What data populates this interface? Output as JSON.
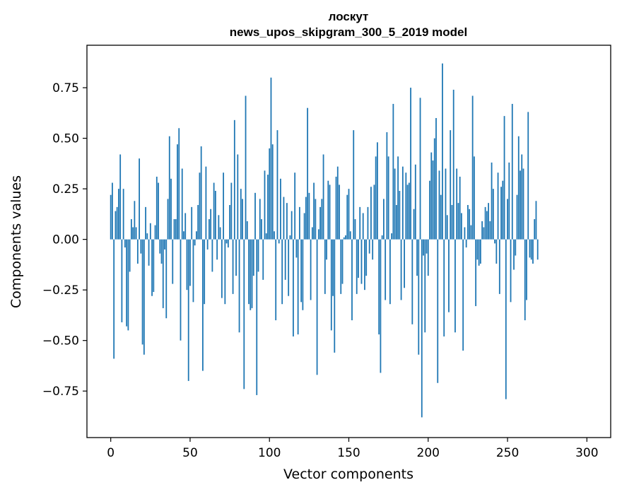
{
  "chart_data": {
    "type": "bar",
    "title_line1": "лоскут",
    "title_line2": "news_upos_skipgram_300_5_2019 model",
    "xlabel": "Vector components",
    "ylabel": "Components values",
    "xlim": [
      -15,
      315
    ],
    "ylim": [
      -0.98,
      0.96
    ],
    "x_ticks": [
      0,
      50,
      100,
      150,
      200,
      250,
      300
    ],
    "y_ticks": [
      0.75,
      0.5,
      0.25,
      0.0,
      -0.25,
      -0.5,
      -0.75
    ],
    "y_tick_labels": [
      "0.75",
      "0.50",
      "0.25",
      "0.00",
      "−0.25",
      "−0.50",
      "−0.75"
    ],
    "bar_color": "#1f77b4",
    "grid": false,
    "values": [
      0.22,
      0.28,
      -0.59,
      0.14,
      0.16,
      0.25,
      0.42,
      -0.41,
      0.25,
      -0.04,
      -0.43,
      -0.45,
      -0.16,
      0.1,
      0.06,
      0.19,
      0.06,
      -0.12,
      0.4,
      -0.07,
      -0.52,
      -0.57,
      0.16,
      0.03,
      -0.13,
      0.08,
      -0.28,
      -0.26,
      0.07,
      0.31,
      0.28,
      -0.07,
      -0.12,
      -0.34,
      -0.05,
      -0.39,
      0.2,
      0.51,
      0.3,
      -0.22,
      0.1,
      0.1,
      0.47,
      0.55,
      -0.5,
      0.35,
      0.04,
      0.13,
      -0.25,
      -0.7,
      -0.23,
      0.16,
      -0.31,
      -0.03,
      0.04,
      0.17,
      0.33,
      0.46,
      -0.65,
      -0.32,
      0.36,
      -0.05,
      0.1,
      0.15,
      -0.16,
      0.28,
      0.24,
      -0.1,
      0.12,
      0.06,
      -0.29,
      0.33,
      -0.32,
      -0.02,
      -0.04,
      0.17,
      0.28,
      -0.27,
      0.59,
      -0.18,
      0.42,
      -0.46,
      0.25,
      0.2,
      -0.74,
      0.71,
      0.09,
      -0.32,
      -0.35,
      -0.34,
      -0.18,
      0.23,
      -0.77,
      -0.16,
      0.2,
      0.1,
      -0.2,
      0.34,
      0.03,
      0.32,
      0.45,
      0.8,
      0.47,
      0.04,
      -0.4,
      0.54,
      -0.02,
      0.3,
      -0.32,
      0.21,
      -0.2,
      0.18,
      -0.28,
      0.02,
      0.14,
      -0.48,
      0.33,
      -0.09,
      -0.47,
      0.16,
      -0.31,
      -0.35,
      0.13,
      0.21,
      0.65,
      0.23,
      -0.3,
      0.06,
      0.28,
      0.2,
      -0.67,
      0.05,
      0.16,
      0.2,
      0.42,
      -0.27,
      -0.1,
      0.29,
      0.27,
      -0.45,
      -0.28,
      -0.56,
      0.31,
      0.36,
      0.27,
      -0.27,
      -0.22,
      0.01,
      0.02,
      0.22,
      0.25,
      0.04,
      -0.4,
      0.54,
      0.1,
      -0.27,
      -0.19,
      0.16,
      -0.22,
      0.13,
      -0.25,
      -0.18,
      0.16,
      -0.07,
      0.26,
      -0.1,
      0.27,
      0.41,
      0.48,
      -0.47,
      -0.66,
      0.02,
      0.2,
      -0.3,
      0.53,
      0.41,
      -0.32,
      0.03,
      0.67,
      0.35,
      0.17,
      0.41,
      0.24,
      -0.3,
      0.36,
      -0.24,
      0.33,
      0.27,
      0.28,
      0.75,
      -0.42,
      0.15,
      0.37,
      -0.18,
      -0.57,
      0.7,
      -0.88,
      -0.08,
      -0.46,
      -0.07,
      -0.18,
      0.29,
      0.43,
      0.39,
      0.5,
      0.6,
      -0.71,
      0.34,
      0.22,
      0.87,
      -0.48,
      0.35,
      0.12,
      -0.36,
      0.54,
      0.17,
      0.74,
      -0.46,
      0.35,
      0.18,
      0.31,
      0.13,
      -0.55,
      0.06,
      -0.04,
      0.17,
      0.15,
      0.07,
      0.71,
      0.41,
      -0.33,
      -0.1,
      -0.13,
      -0.12,
      0.09,
      0.06,
      0.16,
      0.14,
      0.18,
      0.09,
      0.38,
      0.25,
      -0.02,
      -0.12,
      0.33,
      -0.27,
      0.26,
      0.29,
      0.61,
      -0.79,
      0.2,
      0.38,
      -0.31,
      0.67,
      -0.15,
      -0.08,
      0.22,
      0.51,
      0.34,
      0.42,
      0.35,
      -0.4,
      -0.3,
      0.63,
      -0.09,
      -0.1,
      -0.12,
      0.1,
      0.19,
      -0.1
    ]
  }
}
